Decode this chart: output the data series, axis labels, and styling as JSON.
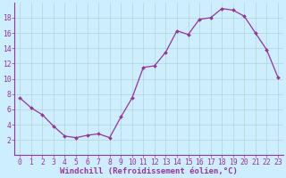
{
  "x": [
    0,
    1,
    2,
    3,
    4,
    5,
    6,
    7,
    8,
    9,
    10,
    11,
    12,
    13,
    14,
    15,
    16,
    17,
    18,
    19,
    20,
    21,
    22,
    23
  ],
  "y": [
    7.5,
    6.2,
    5.3,
    3.8,
    2.5,
    2.3,
    2.6,
    2.8,
    2.3,
    5.0,
    7.5,
    11.5,
    11.7,
    13.5,
    16.3,
    15.8,
    17.8,
    18.0,
    19.2,
    19.0,
    18.2,
    16.0,
    13.8,
    10.2
  ],
  "line_color": "#993399",
  "bg_color": "#cceeff",
  "grid_color": "#aacccc",
  "xlabel": "Windchill (Refroidissement éolien,°C)",
  "xlabel_fontsize": 6.5,
  "tick_fontsize": 5.8,
  "ylim": [
    0,
    20
  ],
  "xlim": [
    -0.5,
    23.5
  ],
  "yticks": [
    2,
    4,
    6,
    8,
    10,
    12,
    14,
    16,
    18
  ],
  "xticks": [
    0,
    1,
    2,
    3,
    4,
    5,
    6,
    7,
    8,
    9,
    10,
    11,
    12,
    13,
    14,
    15,
    16,
    17,
    18,
    19,
    20,
    21,
    22,
    23
  ],
  "xtick_labels": [
    "0",
    "1",
    "2",
    "3",
    "4",
    "5",
    "6",
    "7",
    "8",
    "9",
    "10",
    "11",
    "12",
    "13",
    "14",
    "15",
    "16",
    "17",
    "18",
    "19",
    "20",
    "21",
    "22",
    "23"
  ]
}
